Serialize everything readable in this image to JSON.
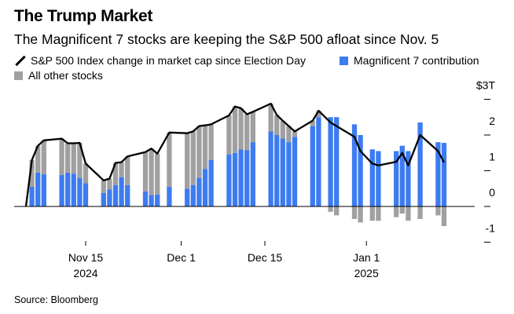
{
  "title": "The Trump Market",
  "subtitle": "The Magnificent 7 stocks are keeping the S&P 500 afloat since Nov. 5",
  "source": "Source: Bloomberg",
  "legend": [
    {
      "label": "S&P 500 Index change in market cap since Election Day",
      "kind": "line",
      "color": "#000000"
    },
    {
      "label": "Magnificent 7 contribution",
      "kind": "box",
      "color": "#3d7bf0"
    },
    {
      "label": "All other stocks",
      "kind": "box",
      "color": "#a0a0a0"
    }
  ],
  "chart_data": {
    "type": "bar",
    "stacked": true,
    "title": "The Trump Market",
    "subtitle": "The Magnificent 7 stocks are keeping the S&P 500 afloat since Nov. 5",
    "ylabel": "",
    "y_unit": "$T",
    "ylim": [
      -1.2,
      3.2
    ],
    "grid": false,
    "x_ticks": [
      {
        "label": "Nov 15",
        "sub": "2024",
        "date": "2024-11-15"
      },
      {
        "label": "Dec 1",
        "sub": "",
        "date": "2024-12-01"
      },
      {
        "label": "Dec 15",
        "sub": "",
        "date": "2024-12-15"
      },
      {
        "label": "Jan 1",
        "sub": "2025",
        "date": "2025-01-01"
      }
    ],
    "y_ticks": [
      {
        "value": 3,
        "label": "$3T"
      },
      {
        "value": 2,
        "label": "2"
      },
      {
        "value": 1,
        "label": "1"
      },
      {
        "value": 0,
        "label": "0"
      },
      {
        "value": -1,
        "label": "-1"
      }
    ],
    "categories": [
      "2024-11-05",
      "2024-11-06",
      "2024-11-07",
      "2024-11-08",
      "2024-11-11",
      "2024-11-12",
      "2024-11-13",
      "2024-11-14",
      "2024-11-15",
      "2024-11-18",
      "2024-11-19",
      "2024-11-20",
      "2024-11-21",
      "2024-11-22",
      "2024-11-25",
      "2024-11-26",
      "2024-11-27",
      "2024-11-29",
      "2024-12-02",
      "2024-12-03",
      "2024-12-04",
      "2024-12-05",
      "2024-12-06",
      "2024-12-09",
      "2024-12-10",
      "2024-12-11",
      "2024-12-12",
      "2024-12-13",
      "2024-12-16",
      "2024-12-17",
      "2024-12-18",
      "2024-12-19",
      "2024-12-20",
      "2024-12-23",
      "2024-12-24",
      "2024-12-26",
      "2024-12-27",
      "2024-12-30",
      "2024-12-31",
      "2025-01-02",
      "2025-01-03",
      "2025-01-06",
      "2025-01-07",
      "2025-01-08",
      "2025-01-10",
      "2025-01-13",
      "2025-01-14"
    ],
    "series": [
      {
        "name": "Magnificent 7 contribution",
        "color": "#3d7bf0",
        "values": [
          0,
          0.55,
          0.95,
          0.9,
          0.88,
          0.95,
          0.92,
          0.8,
          0.65,
          0.38,
          0.48,
          0.6,
          0.82,
          0.6,
          0.42,
          0.32,
          0.33,
          0.55,
          0.5,
          0.6,
          0.8,
          1.05,
          1.3,
          1.45,
          1.5,
          1.6,
          1.58,
          1.8,
          2.1,
          2.0,
          1.9,
          1.8,
          1.95,
          2.25,
          2.5,
          2.5,
          2.5,
          2.3,
          2.0,
          1.6,
          1.55,
          1.55,
          1.7,
          1.55,
          2.35,
          1.8,
          1.78
        ]
      },
      {
        "name": "All other stocks",
        "color": "#a0a0a0",
        "values": [
          0,
          0.75,
          0.75,
          0.95,
          1.02,
          0.82,
          0.85,
          0.98,
          0.55,
          0.35,
          0.3,
          0.62,
          0.42,
          0.8,
          1.1,
          1.3,
          1.15,
          1.52,
          1.55,
          1.5,
          1.45,
          1.22,
          1.0,
          1.1,
          1.3,
          1.15,
          1.0,
          0.85,
          0.78,
          0.56,
          0.5,
          0.45,
          0.15,
          0.15,
          0.18,
          -0.15,
          -0.25,
          -0.35,
          -0.45,
          -0.4,
          -0.4,
          -0.3,
          -0.2,
          -0.4,
          -0.35,
          -0.25,
          -0.55
        ]
      },
      {
        "name": "S&P 500 Index change in market cap since Election Day",
        "type": "line",
        "color": "#000000",
        "values": [
          0,
          1.3,
          1.7,
          1.85,
          1.9,
          1.77,
          1.77,
          1.78,
          1.2,
          0.73,
          0.78,
          1.22,
          1.24,
          1.4,
          1.52,
          1.62,
          1.48,
          2.07,
          2.05,
          2.1,
          2.25,
          2.27,
          2.3,
          2.55,
          2.8,
          2.75,
          2.58,
          2.65,
          2.88,
          2.56,
          2.4,
          2.25,
          2.1,
          2.4,
          2.68,
          2.35,
          2.25,
          1.95,
          1.55,
          1.2,
          1.15,
          1.25,
          1.5,
          1.15,
          2.0,
          1.55,
          1.23
        ]
      }
    ]
  }
}
